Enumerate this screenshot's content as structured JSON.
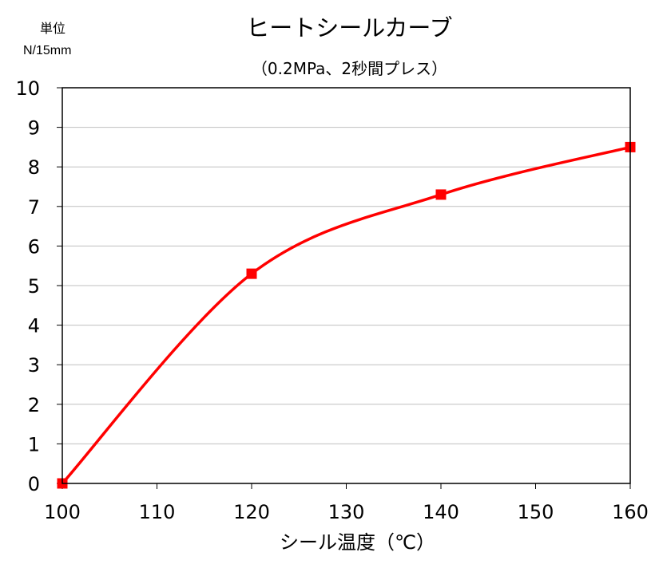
{
  "chart_data": {
    "type": "line",
    "title": "ヒートシールカーブ",
    "subtitle": "（0.2MPa、2秒間プレス）",
    "ylabel_line1": "単位",
    "ylabel_line2": "N/15mm",
    "xlabel": "シール温度（℃）",
    "xlim": [
      100,
      160
    ],
    "ylim": [
      0,
      10
    ],
    "x_ticks": [
      100,
      110,
      120,
      130,
      140,
      150,
      160
    ],
    "y_ticks": [
      0,
      1,
      2,
      3,
      4,
      5,
      6,
      7,
      8,
      9,
      10
    ],
    "grid": true,
    "series": [
      {
        "x": [
          100,
          120,
          140,
          160
        ],
        "values": [
          0,
          5.3,
          7.3,
          8.5
        ],
        "color": "#ff0000",
        "marker": "square",
        "smooth": true
      }
    ]
  }
}
